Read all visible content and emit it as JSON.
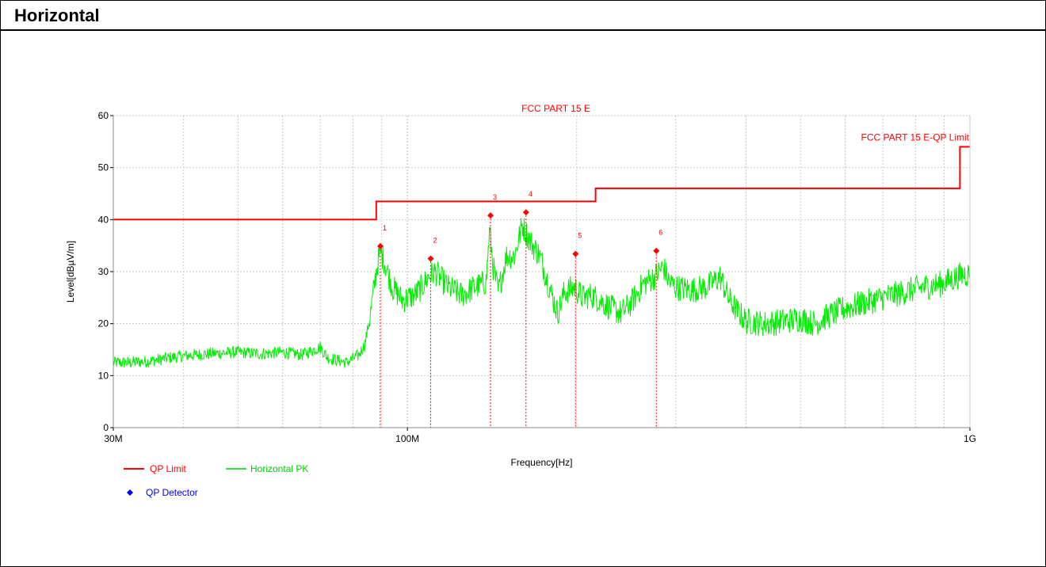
{
  "header": {
    "title": "Horizontal"
  },
  "chart_data": {
    "type": "line",
    "title": "FCC PART 15 E",
    "xlabel": "Frequency[Hz]",
    "ylabel": "Level[dBµV/m]",
    "x_scale": "log",
    "xlim": [
      30000000,
      1000000000
    ],
    "ylim": [
      0,
      60
    ],
    "grid": true,
    "x_tick_labels": [
      {
        "value": 30000000,
        "label": "30M"
      },
      {
        "value": 100000000,
        "label": "100M"
      },
      {
        "value": 1000000000,
        "label": "1G"
      }
    ],
    "y_ticks": [
      0,
      10,
      20,
      30,
      40,
      50,
      60
    ],
    "y_tick_labels": [
      "0",
      "10",
      "20",
      "30",
      "40",
      "50",
      "60"
    ],
    "limit_label": "FCC PART 15 E-QP Limit",
    "series": [
      {
        "name": "QP Limit",
        "color": "#ff0000",
        "style": "step",
        "points": [
          [
            30000000,
            40
          ],
          [
            88000000,
            40
          ],
          [
            88000000,
            43.5
          ],
          [
            216000000,
            43.5
          ],
          [
            216000000,
            46
          ],
          [
            960000000,
            46
          ],
          [
            960000000,
            54
          ],
          [
            1000000000,
            54
          ]
        ]
      },
      {
        "name": "Horizontal PK",
        "color": "#00ee00",
        "style": "noisy-line",
        "points": [
          [
            30000000,
            12.5
          ],
          [
            32000000,
            12.5
          ],
          [
            35000000,
            12.8
          ],
          [
            38000000,
            13.5
          ],
          [
            42000000,
            14.0
          ],
          [
            46000000,
            14.3
          ],
          [
            50000000,
            14.5
          ],
          [
            55000000,
            14.2
          ],
          [
            60000000,
            14.5
          ],
          [
            65000000,
            14.0
          ],
          [
            70000000,
            15.5
          ],
          [
            72000000,
            13.5
          ],
          [
            78000000,
            12.5
          ],
          [
            82000000,
            14.0
          ],
          [
            84000000,
            16.0
          ],
          [
            86000000,
            22.0
          ],
          [
            88000000,
            30.0
          ],
          [
            89500000,
            34.0
          ],
          [
            91000000,
            32.0
          ],
          [
            94000000,
            27.0
          ],
          [
            98000000,
            24.5
          ],
          [
            103000000,
            25.5
          ],
          [
            106000000,
            27.0
          ],
          [
            109000000,
            29.0
          ],
          [
            112000000,
            30.0
          ],
          [
            118000000,
            27.0
          ],
          [
            125000000,
            25.5
          ],
          [
            132000000,
            27.0
          ],
          [
            138000000,
            28.0
          ],
          [
            140000000,
            38.0
          ],
          [
            142000000,
            31.0
          ],
          [
            145000000,
            26.0
          ],
          [
            150000000,
            33.0
          ],
          [
            155000000,
            33.0
          ],
          [
            160000000,
            39.0
          ],
          [
            165000000,
            36.0
          ],
          [
            172000000,
            33.0
          ],
          [
            180000000,
            26.0
          ],
          [
            185000000,
            22.0
          ],
          [
            190000000,
            26.0
          ],
          [
            198000000,
            27.0
          ],
          [
            205000000,
            25.0
          ],
          [
            212000000,
            25.5
          ],
          [
            220000000,
            24.5
          ],
          [
            230000000,
            23.0
          ],
          [
            240000000,
            22.0
          ],
          [
            250000000,
            24.0
          ],
          [
            262000000,
            27.5
          ],
          [
            275000000,
            29.0
          ],
          [
            285000000,
            31.0
          ],
          [
            292000000,
            28.0
          ],
          [
            300000000,
            27.0
          ],
          [
            320000000,
            26.5
          ],
          [
            340000000,
            27.0
          ],
          [
            360000000,
            29.0
          ],
          [
            372000000,
            25.0
          ],
          [
            385000000,
            22.5
          ],
          [
            400000000,
            20.5
          ],
          [
            430000000,
            20.0
          ],
          [
            470000000,
            20.5
          ],
          [
            500000000,
            21.0
          ],
          [
            530000000,
            20.0
          ],
          [
            560000000,
            21.5
          ],
          [
            600000000,
            23.0
          ],
          [
            650000000,
            24.0
          ],
          [
            700000000,
            25.0
          ],
          [
            760000000,
            26.0
          ],
          [
            820000000,
            27.0
          ],
          [
            880000000,
            27.5
          ],
          [
            930000000,
            28.5
          ],
          [
            970000000,
            29.5
          ],
          [
            1000000000,
            29.5
          ]
        ]
      },
      {
        "name": "QP Detector",
        "color": "#0000ff",
        "style": "marker",
        "points": []
      }
    ],
    "markers": [
      {
        "label": "1",
        "x": 89500000,
        "y": 34.9
      },
      {
        "label": "2",
        "x": 110000000,
        "y": 32.5
      },
      {
        "label": "3",
        "x": 140500000,
        "y": 40.8
      },
      {
        "label": "4",
        "x": 162500000,
        "y": 41.4
      },
      {
        "label": "5",
        "x": 199000000,
        "y": 33.4
      },
      {
        "label": "6",
        "x": 277000000,
        "y": 34.0
      }
    ],
    "legend": {
      "placement": "bottom-left",
      "items": [
        {
          "name": "QP Limit",
          "color": "#ff0000",
          "symbol": "line"
        },
        {
          "name": "Horizontal PK",
          "color": "#00cc00",
          "symbol": "line"
        },
        {
          "name": "QP Detector",
          "color": "#0000ff",
          "symbol": "diamond"
        }
      ]
    }
  }
}
